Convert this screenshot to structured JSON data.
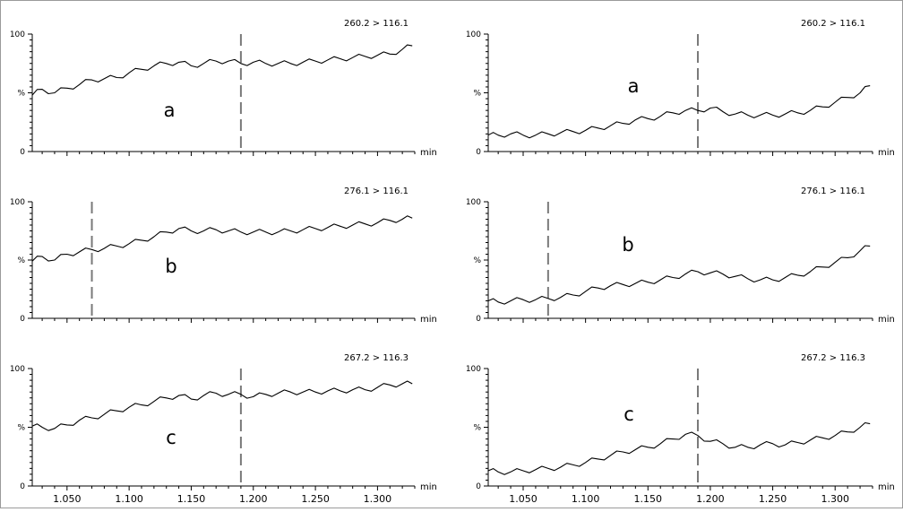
{
  "chart_data": [
    {
      "type": "line",
      "panel": "left-top",
      "transition": "260.2 > 116.1",
      "label": "a",
      "y_ticks": [
        "100",
        "%",
        "0"
      ],
      "x_unit": "min",
      "xlim": [
        1.022,
        1.33
      ],
      "ylim": [
        0,
        100
      ],
      "rt_marker": 1.19,
      "series": [
        {
          "x": [
            1.022,
            1.03,
            1.04,
            1.05,
            1.06,
            1.07,
            1.08,
            1.09,
            1.1,
            1.11,
            1.12,
            1.13,
            1.14,
            1.15,
            1.16,
            1.17,
            1.18,
            1.19,
            1.2,
            1.21,
            1.22,
            1.23,
            1.24,
            1.25,
            1.26,
            1.27,
            1.28,
            1.29,
            1.3,
            1.31,
            1.32,
            1.328
          ],
          "y": [
            48,
            53,
            50,
            54,
            57,
            61,
            62,
            63,
            67,
            70,
            73,
            75,
            76,
            73,
            75,
            77,
            77,
            75,
            76,
            75,
            75,
            75,
            76,
            77,
            78,
            79,
            80,
            81,
            82,
            83,
            87,
            90
          ]
        }
      ]
    },
    {
      "type": "line",
      "panel": "right-top",
      "transition": "260.2 > 116.1",
      "label": "a",
      "y_ticks": [
        "100",
        "%",
        "0"
      ],
      "x_unit": "min",
      "xlim": [
        1.022,
        1.33
      ],
      "ylim": [
        0,
        100
      ],
      "rt_marker": 1.19,
      "series": [
        {
          "x": [
            1.022,
            1.03,
            1.04,
            1.05,
            1.06,
            1.07,
            1.08,
            1.09,
            1.1,
            1.11,
            1.12,
            1.13,
            1.14,
            1.15,
            1.16,
            1.17,
            1.18,
            1.19,
            1.2,
            1.21,
            1.22,
            1.23,
            1.24,
            1.25,
            1.26,
            1.27,
            1.28,
            1.29,
            1.3,
            1.31,
            1.32,
            1.328
          ],
          "y": [
            14,
            14,
            15,
            14,
            14,
            15,
            16,
            17,
            18,
            20,
            22,
            24,
            27,
            28,
            30,
            33,
            35,
            35,
            37,
            34,
            32,
            31,
            31,
            31,
            32,
            33,
            35,
            38,
            42,
            46,
            50,
            56
          ]
        }
      ]
    },
    {
      "type": "line",
      "panel": "left-middle",
      "transition": "276.1 > 116.1",
      "label": "b",
      "y_ticks": [
        "100",
        "%",
        "0"
      ],
      "x_unit": "min",
      "xlim": [
        1.022,
        1.33
      ],
      "ylim": [
        0,
        100
      ],
      "rt_marker": 1.07,
      "series": [
        {
          "x": [
            1.022,
            1.03,
            1.04,
            1.05,
            1.06,
            1.07,
            1.08,
            1.09,
            1.1,
            1.11,
            1.12,
            1.13,
            1.14,
            1.15,
            1.16,
            1.17,
            1.18,
            1.19,
            1.2,
            1.21,
            1.22,
            1.23,
            1.24,
            1.25,
            1.26,
            1.27,
            1.28,
            1.29,
            1.3,
            1.31,
            1.32,
            1.328
          ],
          "y": [
            49,
            53,
            50,
            55,
            57,
            59,
            60,
            62,
            64,
            67,
            70,
            74,
            77,
            75,
            75,
            76,
            75,
            74,
            74,
            74,
            74,
            75,
            76,
            77,
            78,
            79,
            80,
            81,
            82,
            84,
            85,
            86
          ]
        }
      ]
    },
    {
      "type": "line",
      "panel": "right-middle",
      "transition": "276.1 > 116.1",
      "label": "b",
      "y_ticks": [
        "100",
        "%",
        "0"
      ],
      "x_unit": "min",
      "xlim": [
        1.022,
        1.33
      ],
      "ylim": [
        0,
        100
      ],
      "rt_marker": 1.07,
      "series": [
        {
          "x": [
            1.022,
            1.03,
            1.04,
            1.05,
            1.06,
            1.07,
            1.08,
            1.09,
            1.1,
            1.11,
            1.12,
            1.13,
            1.14,
            1.15,
            1.16,
            1.17,
            1.18,
            1.19,
            1.2,
            1.21,
            1.22,
            1.23,
            1.24,
            1.25,
            1.26,
            1.27,
            1.28,
            1.29,
            1.3,
            1.31,
            1.32,
            1.328
          ],
          "y": [
            15,
            14,
            15,
            16,
            16,
            17,
            18,
            20,
            23,
            26,
            28,
            29,
            30,
            31,
            33,
            35,
            38,
            40,
            39,
            38,
            36,
            34,
            33,
            33,
            35,
            37,
            40,
            44,
            48,
            52,
            58,
            62
          ]
        }
      ]
    },
    {
      "type": "line",
      "panel": "left-bottom",
      "transition": "267.2 > 116.3",
      "label": "c",
      "y_ticks": [
        "100",
        "%",
        "0"
      ],
      "x_unit": "min",
      "xlim": [
        1.022,
        1.33
      ],
      "ylim": [
        0,
        100
      ],
      "rt_marker": 1.19,
      "x_ticks": [
        "1.050",
        "1.100",
        "1.150",
        "1.200",
        "1.250",
        "1.300"
      ],
      "series": [
        {
          "x": [
            1.022,
            1.03,
            1.04,
            1.05,
            1.06,
            1.07,
            1.08,
            1.09,
            1.1,
            1.11,
            1.12,
            1.13,
            1.14,
            1.15,
            1.16,
            1.17,
            1.18,
            1.19,
            1.2,
            1.21,
            1.22,
            1.23,
            1.24,
            1.25,
            1.26,
            1.27,
            1.28,
            1.29,
            1.3,
            1.31,
            1.32,
            1.328
          ],
          "y": [
            51,
            50,
            49,
            52,
            56,
            58,
            61,
            64,
            67,
            69,
            72,
            75,
            77,
            74,
            77,
            79,
            78,
            78,
            76,
            78,
            79,
            80,
            80,
            80,
            81,
            81,
            82,
            82,
            84,
            86,
            87,
            87
          ]
        }
      ]
    },
    {
      "type": "line",
      "panel": "right-bottom",
      "transition": "267.2 > 116.3",
      "label": "c",
      "y_ticks": [
        "100",
        "%",
        "0"
      ],
      "x_unit": "min",
      "xlim": [
        1.022,
        1.33
      ],
      "ylim": [
        0,
        100
      ],
      "rt_marker": 1.19,
      "x_ticks": [
        "1.050",
        "1.100",
        "1.150",
        "1.200",
        "1.250",
        "1.300"
      ],
      "series": [
        {
          "x": [
            1.022,
            1.03,
            1.04,
            1.05,
            1.06,
            1.07,
            1.08,
            1.09,
            1.1,
            1.11,
            1.12,
            1.13,
            1.14,
            1.15,
            1.16,
            1.17,
            1.18,
            1.19,
            1.2,
            1.21,
            1.22,
            1.23,
            1.24,
            1.25,
            1.26,
            1.27,
            1.28,
            1.29,
            1.3,
            1.31,
            1.32,
            1.328
          ],
          "y": [
            13,
            12,
            12,
            13,
            14,
            15,
            16,
            18,
            20,
            23,
            26,
            29,
            31,
            33,
            36,
            40,
            44,
            43,
            38,
            36,
            33,
            33,
            35,
            36,
            35,
            37,
            39,
            41,
            43,
            46,
            50,
            53
          ]
        }
      ]
    }
  ]
}
